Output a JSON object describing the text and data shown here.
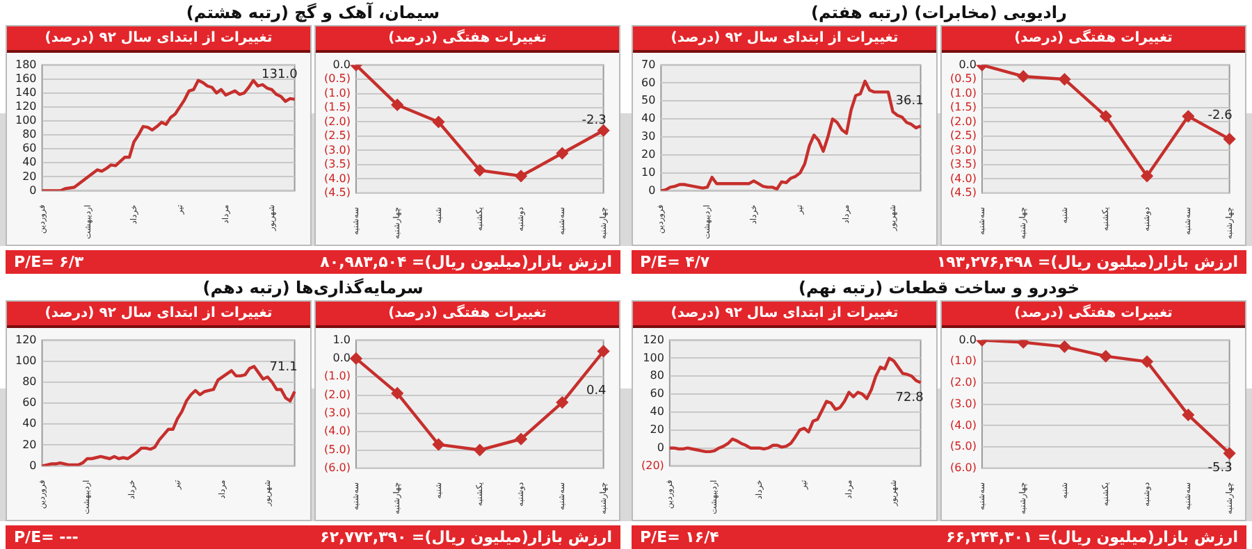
{
  "chart_data": [
    {
      "type": "line",
      "title": "تغییرات از ابتدای سال ۹۲ (درصد)",
      "annotations": [
        "سیمان، آهک و گچ (رتبه هشتم)",
        "P/E= ۶/۳"
      ],
      "categories": [
        "فروردین",
        null,
        null,
        null,
        null,
        null,
        null,
        null,
        null,
        null,
        "اردیبهشت",
        null,
        null,
        null,
        null,
        null,
        null,
        null,
        null,
        null,
        "خرداد",
        null,
        null,
        null,
        null,
        null,
        null,
        null,
        null,
        null,
        "تیر",
        null,
        null,
        null,
        null,
        null,
        null,
        null,
        null,
        null,
        "مرداد",
        null,
        null,
        null,
        null,
        null,
        null,
        null,
        null,
        null,
        "شهریور",
        null,
        null,
        null,
        null,
        null
      ],
      "values": [
        0,
        0,
        0,
        0,
        0,
        3,
        4,
        5,
        10,
        15,
        20,
        25,
        30,
        28,
        32,
        37,
        36,
        42,
        48,
        48,
        70,
        80,
        92,
        91,
        87,
        92,
        98,
        95,
        105,
        110,
        120,
        130,
        143,
        145,
        158,
        155,
        150,
        148,
        140,
        145,
        137,
        140,
        143,
        138,
        140,
        148,
        158,
        150,
        152,
        147,
        145,
        138,
        135,
        128,
        132,
        131.0
      ],
      "value_labels": [
        null,
        null,
        null,
        null,
        null,
        null,
        null,
        null,
        null,
        null,
        null,
        null,
        null,
        null,
        null,
        null,
        null,
        null,
        null,
        null,
        null,
        null,
        null,
        null,
        null,
        null,
        null,
        null,
        null,
        null,
        null,
        null,
        null,
        null,
        null,
        null,
        null,
        null,
        null,
        null,
        null,
        null,
        null,
        null,
        null,
        null,
        null,
        null,
        null,
        null,
        null,
        null,
        null,
        null,
        null,
        "131.0"
      ],
      "color": "#c62f2c",
      "ylim": [
        0,
        180
      ],
      "yticks": [
        0,
        20,
        40,
        60,
        80,
        100,
        120,
        140,
        160,
        180
      ],
      "grid": "y",
      "marker": "none",
      "line_style": "solid"
    },
    {
      "type": "line",
      "title": "تغییرات هفتگی (درصد)",
      "annotations": [
        "ارزش بازار(میلیون ریال)= ۸۰,۹۸۳,۵۰۴"
      ],
      "categories": [
        "سه‌شنبه",
        "چهارشنبه",
        "شنبه",
        "یکشنبه",
        "دوشنبه",
        "سه‌شنبه",
        "چهارشنبه"
      ],
      "values": [
        0,
        -1.4,
        -2.0,
        -3.7,
        -3.9,
        -3.1,
        -2.3
      ],
      "value_labels": [
        null,
        null,
        null,
        null,
        null,
        null,
        "-2.3"
      ],
      "color": "#c62f2c",
      "ylim": [
        -4.5,
        0
      ],
      "yticks": [
        {
          "value": 0,
          "label": "0.0"
        },
        {
          "value": -0.5,
          "label": "(0.5)"
        },
        {
          "value": -1,
          "label": "(1.0)"
        },
        {
          "value": -1.5,
          "label": "(1.5)"
        },
        {
          "value": -2,
          "label": "(2.0)"
        },
        {
          "value": -2.5,
          "label": "(2.5)"
        },
        {
          "value": -3,
          "label": "(3.0)"
        },
        {
          "value": -3.5,
          "label": "(3.5)"
        },
        {
          "value": -4,
          "label": "(4.0)"
        },
        {
          "value": -4.5,
          "label": "(4.5)"
        }
      ],
      "grid": "y",
      "marker": "diamond",
      "line_style": "solid"
    },
    {
      "type": "line",
      "title": "تغییرات از ابتدای سال ۹۲ (درصد)",
      "annotations": [
        "رادیویی (مخابرات) (رتبه هفتم)",
        "P/E= ۴/۷"
      ],
      "categories": [
        "فروردین",
        null,
        null,
        null,
        null,
        null,
        null,
        null,
        null,
        null,
        "اردیبهشت",
        null,
        null,
        null,
        null,
        null,
        null,
        null,
        null,
        null,
        "خرداد",
        null,
        null,
        null,
        null,
        null,
        null,
        null,
        null,
        null,
        "تیر",
        null,
        null,
        null,
        null,
        null,
        null,
        null,
        null,
        null,
        "مرداد",
        null,
        null,
        null,
        null,
        null,
        null,
        null,
        null,
        null,
        "شهریور",
        null,
        null,
        null,
        null,
        null,
        null
      ],
      "values": [
        0,
        0.5,
        2,
        2.5,
        3.5,
        3.5,
        3,
        2.5,
        2,
        1.5,
        2,
        7.5,
        4,
        4,
        4,
        4,
        4,
        4,
        4,
        4,
        5.5,
        4,
        2.5,
        2,
        2,
        1,
        5,
        4.5,
        7,
        8,
        10,
        15,
        25,
        31,
        28,
        22,
        30,
        40,
        38,
        34,
        32,
        45,
        53,
        54,
        61,
        56,
        55,
        55,
        55,
        55,
        44,
        42,
        41,
        38,
        37,
        35,
        36.1
      ],
      "value_labels": [
        null,
        null,
        null,
        null,
        null,
        null,
        null,
        null,
        null,
        null,
        null,
        null,
        null,
        null,
        null,
        null,
        null,
        null,
        null,
        null,
        null,
        null,
        null,
        null,
        null,
        null,
        null,
        null,
        null,
        null,
        null,
        null,
        null,
        null,
        null,
        null,
        null,
        null,
        null,
        null,
        null,
        null,
        null,
        null,
        null,
        null,
        null,
        null,
        null,
        null,
        null,
        null,
        null,
        null,
        null,
        null,
        "36.1"
      ],
      "color": "#c62f2c",
      "ylim": [
        0,
        70
      ],
      "yticks": [
        0,
        10,
        20,
        30,
        40,
        50,
        60,
        70
      ],
      "grid": "y",
      "marker": "none",
      "line_style": "solid"
    },
    {
      "type": "line",
      "title": "تغییرات هفتگی (درصد)",
      "annotations": [
        "ارزش بازار(میلیون ریال)= ۱۹۳,۲۷۶,۴۹۸"
      ],
      "categories": [
        "سه‌شنبه",
        "چهارشنبه",
        "شنبه",
        "یکشنبه",
        "دوشنبه",
        "سه‌شنبه",
        "چهارشنبه"
      ],
      "values": [
        0,
        -0.4,
        -0.5,
        -1.8,
        -3.9,
        -1.8,
        -2.6
      ],
      "value_labels": [
        null,
        null,
        null,
        null,
        null,
        null,
        "-2.6"
      ],
      "color": "#c62f2c",
      "ylim": [
        -4.5,
        0
      ],
      "yticks": [
        {
          "value": 0,
          "label": "0.0"
        },
        {
          "value": -0.5,
          "label": "(0.5)"
        },
        {
          "value": -1,
          "label": "(1.0)"
        },
        {
          "value": -1.5,
          "label": "(1.5)"
        },
        {
          "value": -2,
          "label": "(2.0)"
        },
        {
          "value": -2.5,
          "label": "(2.5)"
        },
        {
          "value": -3,
          "label": "(3.0)"
        },
        {
          "value": -3.5,
          "label": "(3.5)"
        },
        {
          "value": -4,
          "label": "(4.0)"
        },
        {
          "value": -4.5,
          "label": "(4.5)"
        }
      ],
      "grid": "y",
      "marker": "diamond",
      "line_style": "solid"
    },
    {
      "type": "line",
      "title": "تغییرات از ابتدای سال ۹۲ (درصد)",
      "annotations": [
        "سرمایه‌گذاری‌ها (رتبه دهم)",
        "P/E= ---"
      ],
      "categories": [
        "فروردین",
        null,
        null,
        null,
        null,
        null,
        null,
        null,
        null,
        null,
        "اردیبهشت",
        null,
        null,
        null,
        null,
        null,
        null,
        null,
        null,
        null,
        "خرداد",
        null,
        null,
        null,
        null,
        null,
        null,
        null,
        null,
        null,
        "تیر",
        null,
        null,
        null,
        null,
        null,
        null,
        null,
        null,
        null,
        "مرداد",
        null,
        null,
        null,
        null,
        null,
        null,
        null,
        null,
        null,
        "شهریور",
        null,
        null,
        null,
        null,
        null,
        null
      ],
      "values": [
        0,
        1,
        2,
        2,
        3,
        2,
        1,
        1,
        1,
        3,
        7,
        7,
        8,
        9,
        8,
        7,
        9,
        7,
        8,
        7,
        10,
        13,
        17,
        17,
        16,
        18,
        25,
        30,
        35,
        35,
        45,
        52,
        62,
        68,
        72,
        68,
        71,
        72,
        73,
        82,
        85,
        88,
        91,
        86,
        86,
        87,
        93,
        95,
        89,
        83,
        85,
        80,
        73,
        73,
        65,
        62,
        71.1
      ],
      "value_labels": [
        null,
        null,
        null,
        null,
        null,
        null,
        null,
        null,
        null,
        null,
        null,
        null,
        null,
        null,
        null,
        null,
        null,
        null,
        null,
        null,
        null,
        null,
        null,
        null,
        null,
        null,
        null,
        null,
        null,
        null,
        null,
        null,
        null,
        null,
        null,
        null,
        null,
        null,
        null,
        null,
        null,
        null,
        null,
        null,
        null,
        null,
        null,
        null,
        null,
        null,
        null,
        null,
        null,
        null,
        null,
        null,
        "71.1"
      ],
      "color": "#c62f2c",
      "ylim": [
        0,
        120
      ],
      "yticks": [
        0,
        20,
        40,
        60,
        80,
        100,
        120
      ],
      "grid": "y",
      "marker": "none",
      "line_style": "solid"
    },
    {
      "type": "line",
      "title": "تغییرات هفتگی (درصد)",
      "annotations": [
        "ارزش بازار(میلیون ریال)= ۶۲,۷۷۲,۳۹۰"
      ],
      "categories": [
        "سه‌شنبه",
        "چهارشنبه",
        "شنبه",
        "یکشنبه",
        "دوشنبه",
        "سه‌شنبه",
        "چهارشنبه"
      ],
      "values": [
        0,
        -1.9,
        -4.7,
        -5.0,
        -4.4,
        -2.4,
        0.4
      ],
      "value_labels": [
        null,
        null,
        null,
        null,
        null,
        null,
        "0.4"
      ],
      "color": "#c62f2c",
      "ylim": [
        -6,
        1
      ],
      "yticks": [
        {
          "value": 1,
          "label": "1.0"
        },
        {
          "value": 0,
          "label": "0.0"
        },
        {
          "value": -1,
          "label": "(1.0)"
        },
        {
          "value": -2,
          "label": "(2.0)"
        },
        {
          "value": -3,
          "label": "(3.0)"
        },
        {
          "value": -4,
          "label": "(4.0)"
        },
        {
          "value": -5,
          "label": "(5.0)"
        },
        {
          "value": -6,
          "label": "(6.0)"
        }
      ],
      "grid": "y",
      "marker": "diamond",
      "line_style": "solid"
    },
    {
      "type": "line",
      "title": "تغییرات از ابتدای سال ۹۲ (درصد)",
      "annotations": [
        "خودرو و ساخت قطعات (رتبه نهم)",
        "P/E= ۱۶/۴"
      ],
      "categories": [
        "فروردین",
        null,
        null,
        null,
        null,
        null,
        null,
        null,
        null,
        null,
        "اردیبهشت",
        null,
        null,
        null,
        null,
        null,
        null,
        null,
        null,
        null,
        "خرداد",
        null,
        null,
        null,
        null,
        null,
        null,
        null,
        null,
        null,
        "تیر",
        null,
        null,
        null,
        null,
        null,
        null,
        null,
        null,
        null,
        "مرداد",
        null,
        null,
        null,
        null,
        null,
        null,
        null,
        null,
        null,
        "شهریور",
        null,
        null,
        null,
        null,
        null,
        null
      ],
      "values": [
        0,
        0,
        -1,
        -1,
        0,
        -1,
        -2,
        -3,
        -4,
        -4,
        -3,
        0,
        2,
        5,
        10,
        8,
        5,
        3,
        0,
        0,
        0,
        -1,
        0,
        3,
        3,
        1,
        2,
        5,
        12,
        20,
        22,
        18,
        30,
        32,
        42,
        52,
        50,
        43,
        45,
        52,
        62,
        57,
        62,
        60,
        55,
        65,
        80,
        90,
        88,
        100,
        97,
        90,
        83,
        82,
        80,
        75,
        72.8
      ],
      "value_labels": [
        null,
        null,
        null,
        null,
        null,
        null,
        null,
        null,
        null,
        null,
        null,
        null,
        null,
        null,
        null,
        null,
        null,
        null,
        null,
        null,
        null,
        null,
        null,
        null,
        null,
        null,
        null,
        null,
        null,
        null,
        null,
        null,
        null,
        null,
        null,
        null,
        null,
        null,
        null,
        null,
        null,
        null,
        null,
        null,
        null,
        null,
        null,
        null,
        null,
        null,
        null,
        null,
        null,
        null,
        null,
        null,
        "72.8"
      ],
      "color": "#c62f2c",
      "ylim": [
        -20,
        120
      ],
      "yticks": [
        {
          "value": -20,
          "label": "(20)"
        },
        0,
        20,
        40,
        60,
        80,
        100,
        120
      ],
      "grid": "y",
      "marker": "none",
      "line_style": "solid"
    },
    {
      "type": "line",
      "title": "تغییرات هفتگی (درصد)",
      "annotations": [
        "ارزش بازار(میلیون ریال)= ۶۶,۲۴۴,۳۰۱"
      ],
      "categories": [
        "سه‌شنبه",
        "چهارشنبه",
        "شنبه",
        "یکشنبه",
        "دوشنبه",
        "سه‌شنبه",
        "چهارشنبه"
      ],
      "values": [
        0,
        -0.1,
        -0.3,
        -0.75,
        -1.0,
        -3.5,
        -5.3
      ],
      "value_labels": [
        null,
        null,
        null,
        null,
        null,
        null,
        "-5.3"
      ],
      "color": "#c62f2c",
      "ylim": [
        -6,
        0
      ],
      "yticks": [
        {
          "value": 0,
          "label": "0.0"
        },
        {
          "value": -1,
          "label": "(1.0)"
        },
        {
          "value": -2,
          "label": "(2.0)"
        },
        {
          "value": -3,
          "label": "(3.0)"
        },
        {
          "value": -4,
          "label": "(4.0)"
        },
        {
          "value": -5,
          "label": "(5.0)"
        },
        {
          "value": -6,
          "label": "(6.0)"
        }
      ],
      "grid": "y",
      "marker": "diamond",
      "line_style": "solid"
    }
  ]
}
